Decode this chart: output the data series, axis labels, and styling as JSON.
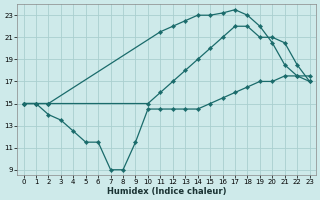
{
  "xlabel": "Humidex (Indice chaleur)",
  "background_color": "#ceeaea",
  "grid_color": "#aacfcf",
  "line_color": "#1a6b6b",
  "xlim": [
    -0.5,
    23.5
  ],
  "ylim": [
    8.5,
    24
  ],
  "xticks": [
    0,
    1,
    2,
    3,
    4,
    5,
    6,
    7,
    8,
    9,
    10,
    11,
    12,
    13,
    14,
    15,
    16,
    17,
    18,
    19,
    20,
    21,
    22,
    23
  ],
  "yticks": [
    9,
    11,
    13,
    15,
    17,
    19,
    21,
    23
  ],
  "lines": [
    {
      "x": [
        0,
        1,
        2,
        11,
        12,
        13,
        14,
        15,
        16,
        17,
        18,
        19,
        20,
        21,
        22,
        23
      ],
      "y": [
        15,
        15,
        15,
        21.5,
        22,
        22.5,
        23,
        23,
        23.2,
        23.5,
        23,
        22,
        20.5,
        18.5,
        17.5,
        17
      ]
    },
    {
      "x": [
        0,
        1,
        2,
        10,
        11,
        12,
        13,
        14,
        15,
        16,
        17,
        18,
        19,
        20,
        21,
        22,
        23
      ],
      "y": [
        15,
        15,
        15,
        15,
        16,
        17,
        18,
        19,
        20,
        21,
        22,
        22,
        21,
        21,
        20.5,
        18.5,
        17
      ]
    },
    {
      "x": [
        0,
        1,
        2,
        3,
        4,
        5,
        6,
        7,
        8,
        9,
        10,
        11,
        12,
        13,
        14,
        15,
        16,
        17,
        18,
        19,
        20,
        21,
        22,
        23
      ],
      "y": [
        15,
        15,
        14,
        13.5,
        12.5,
        11.5,
        11.5,
        9,
        9,
        11.5,
        14.5,
        14.5,
        14.5,
        14.5,
        14.5,
        15,
        15.5,
        16,
        16.5,
        17,
        17,
        17.5,
        17.5,
        17.5
      ]
    }
  ]
}
